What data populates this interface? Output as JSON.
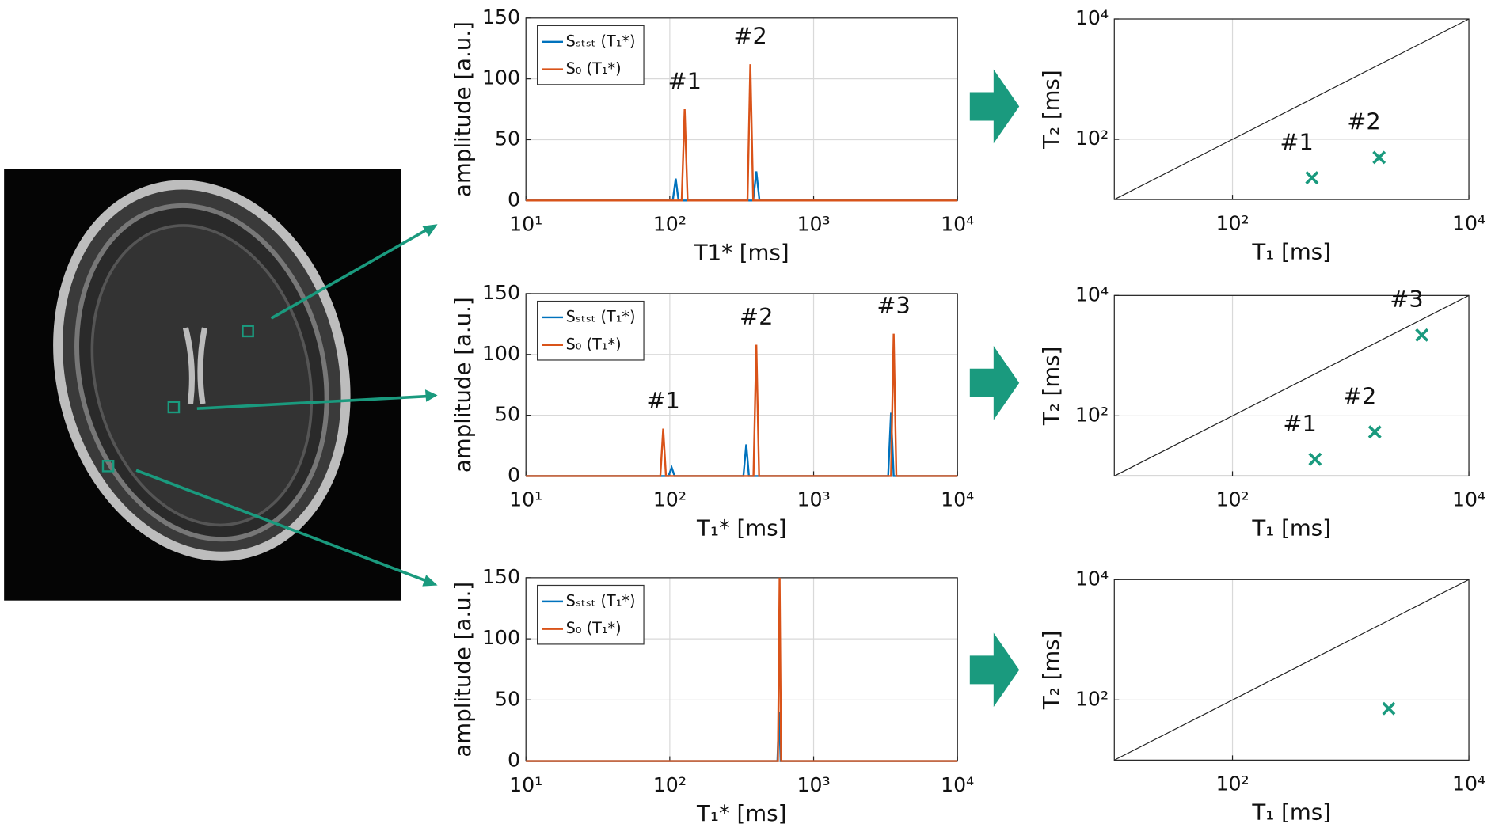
{
  "chart_data": [
    {
      "type": "line",
      "xlabel": "T1* [ms]",
      "ylabel": "amplitude [a.u.]",
      "xscale": "log",
      "xlim": [
        10,
        10000
      ],
      "xticks": [
        {
          "value": 10,
          "label": "10¹"
        },
        {
          "value": 100,
          "label": "10²"
        },
        {
          "value": 1000,
          "label": "10³"
        },
        {
          "value": 10000,
          "label": "10⁴"
        }
      ],
      "ylim": [
        0,
        150
      ],
      "yticks": [
        0,
        50,
        100,
        150
      ],
      "grid": true,
      "legend": "upper left",
      "series": [
        {
          "name": "Sₛₜₛₜ (T₁*)",
          "color": "#0072bd",
          "x": [
            10,
            105,
            110,
            115,
            380,
            400,
            420,
            10000
          ],
          "values": [
            0,
            0,
            18,
            0,
            0,
            24,
            0,
            0
          ]
        },
        {
          "name": "S₀ (T₁*)",
          "color": "#d95319",
          "x": [
            10,
            121,
            127,
            133,
            347,
            363,
            380,
            10000
          ],
          "values": [
            0,
            0,
            75,
            0,
            0,
            112,
            0,
            0
          ]
        }
      ],
      "peak_labels": [
        "#1",
        "#2"
      ]
    },
    {
      "type": "line",
      "xlabel": "T₁* [ms]",
      "ylabel": "amplitude [a.u.]",
      "xscale": "log",
      "xlim": [
        10,
        10000
      ],
      "xticks": [
        {
          "value": 10,
          "label": "10¹"
        },
        {
          "value": 100,
          "label": "10²"
        },
        {
          "value": 1000,
          "label": "10³"
        },
        {
          "value": 10000,
          "label": "10⁴"
        }
      ],
      "ylim": [
        0,
        150
      ],
      "yticks": [
        0,
        50,
        100,
        150
      ],
      "grid": true,
      "legend": "upper left",
      "series": [
        {
          "name": "Sₛₜₛₜ (T₁*)",
          "color": "#0072bd",
          "x": [
            10,
            98,
            103,
            108,
            325,
            340,
            355,
            3300,
            3450,
            3600,
            10000
          ],
          "values": [
            0,
            0,
            7,
            0,
            0,
            26,
            0,
            0,
            52,
            0,
            0
          ]
        },
        {
          "name": "S₀ (T₁*)",
          "color": "#d95319",
          "x": [
            10,
            86,
            90,
            94,
            382,
            400,
            418,
            3450,
            3600,
            3760,
            10000
          ],
          "values": [
            0,
            0,
            39,
            0,
            0,
            108,
            0,
            0,
            117,
            0,
            0
          ]
        }
      ],
      "peak_labels": [
        "#1",
        "#2",
        "#3"
      ]
    },
    {
      "type": "line",
      "xlabel": "T₁* [ms]",
      "ylabel": "amplitude [a.u.]",
      "xscale": "log",
      "xlim": [
        10,
        10000
      ],
      "xticks": [
        {
          "value": 10,
          "label": "10¹"
        },
        {
          "value": 100,
          "label": "10²"
        },
        {
          "value": 1000,
          "label": "10³"
        },
        {
          "value": 10000,
          "label": "10⁴"
        }
      ],
      "ylim": [
        0,
        150
      ],
      "yticks": [
        0,
        50,
        100,
        150
      ],
      "grid": true,
      "legend": "upper left",
      "series": [
        {
          "name": "Sₛₜₛₜ (T₁*)",
          "color": "#0072bd",
          "x": [
            10,
            560,
            575,
            590,
            10000
          ],
          "values": [
            0,
            0,
            40,
            0,
            0
          ]
        },
        {
          "name": "S₀ (T₁*)",
          "color": "#d95319",
          "x": [
            10,
            565,
            580,
            595,
            10000
          ],
          "values": [
            0,
            0,
            150,
            0,
            0
          ]
        }
      ]
    },
    {
      "type": "scatter",
      "xlabel": "T₁ [ms]",
      "ylabel": "T₂ [ms]",
      "xscale": "log",
      "yscale": "log",
      "xlim": [
        10,
        10000
      ],
      "xticks": [
        {
          "value": 100,
          "label": "10²"
        },
        {
          "value": 10000,
          "label": "10⁴"
        }
      ],
      "ylim": [
        10,
        10000
      ],
      "yticks": [
        {
          "value": 100,
          "label": "10²"
        },
        {
          "value": 10000,
          "label": "10⁴"
        }
      ],
      "grid": true,
      "color": "#1a9a7e",
      "x": [
        470,
        1740
      ],
      "values": [
        23,
        50
      ],
      "point_labels": [
        "#1",
        "#2"
      ]
    },
    {
      "type": "scatter",
      "xlabel": "T₁ [ms]",
      "ylabel": "T₂ [ms]",
      "xscale": "log",
      "yscale": "log",
      "xlim": [
        10,
        10000
      ],
      "xticks": [
        {
          "value": 100,
          "label": "10²"
        },
        {
          "value": 10000,
          "label": "10⁴"
        }
      ],
      "ylim": [
        10,
        10000
      ],
      "yticks": [
        {
          "value": 100,
          "label": "10²"
        },
        {
          "value": 10000,
          "label": "10⁴"
        }
      ],
      "grid": true,
      "color": "#1a9a7e",
      "x": [
        500,
        1600,
        4000
      ],
      "values": [
        19,
        54,
        2200
      ],
      "point_labels": [
        "#1",
        "#2",
        "#3"
      ]
    },
    {
      "type": "scatter",
      "xlabel": "T₁ [ms]",
      "ylabel": "T₂ [ms]",
      "xscale": "log",
      "yscale": "log",
      "xlim": [
        10,
        10000
      ],
      "xticks": [
        {
          "value": 100,
          "label": "10²"
        },
        {
          "value": 10000,
          "label": "10⁴"
        }
      ],
      "ylim": [
        10,
        10000
      ],
      "yticks": [
        {
          "value": 100,
          "label": "10²"
        },
        {
          "value": 10000,
          "label": "10⁴"
        }
      ],
      "grid": true,
      "color": "#1a9a7e",
      "x": [
        2100
      ],
      "values": [
        72
      ]
    }
  ]
}
